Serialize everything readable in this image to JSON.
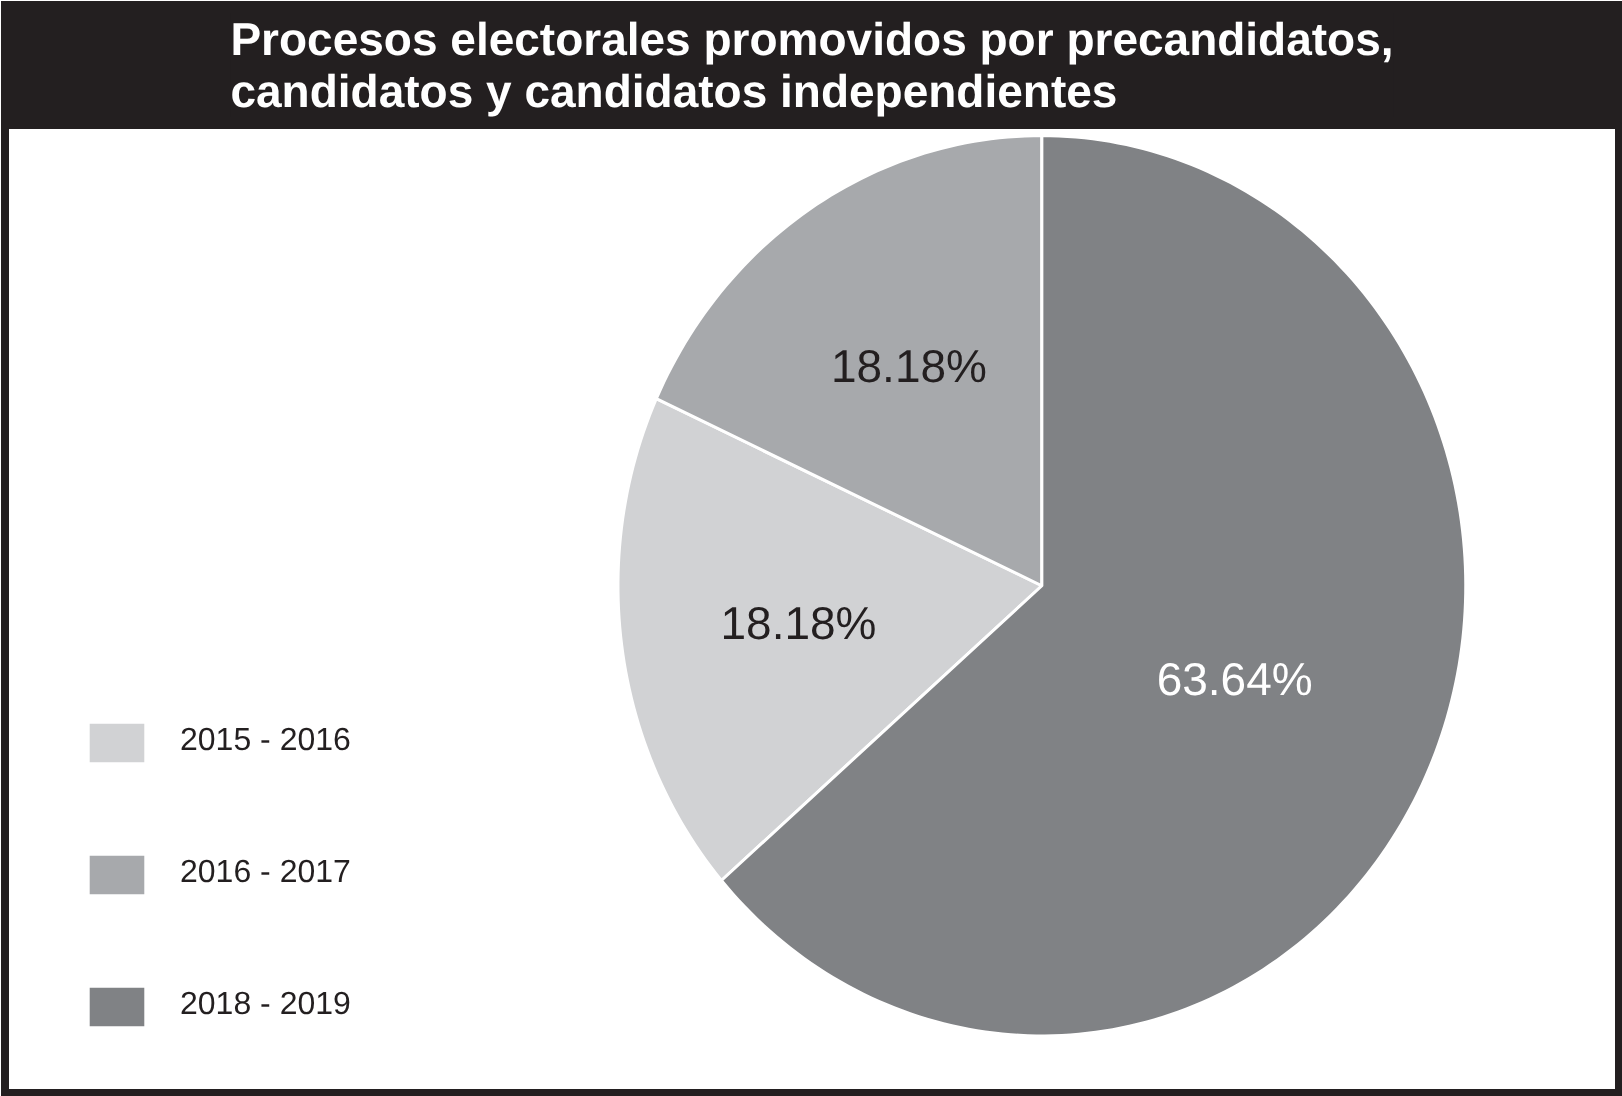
{
  "chart_data": {
    "type": "pie",
    "title": "Procesos electorales promovidos por precandidatos,\ncandidatos y candidatos independientes",
    "categories": [
      "2015 - 2016",
      "2016 - 2017",
      "2018 - 2019"
    ],
    "values": [
      18.18,
      18.18,
      63.64
    ],
    "colors": [
      "#d1d2d4",
      "#a7a9ac",
      "#808285"
    ],
    "value_labels": [
      "18.18%",
      "18.18%",
      "63.64%"
    ],
    "legend": "left"
  }
}
